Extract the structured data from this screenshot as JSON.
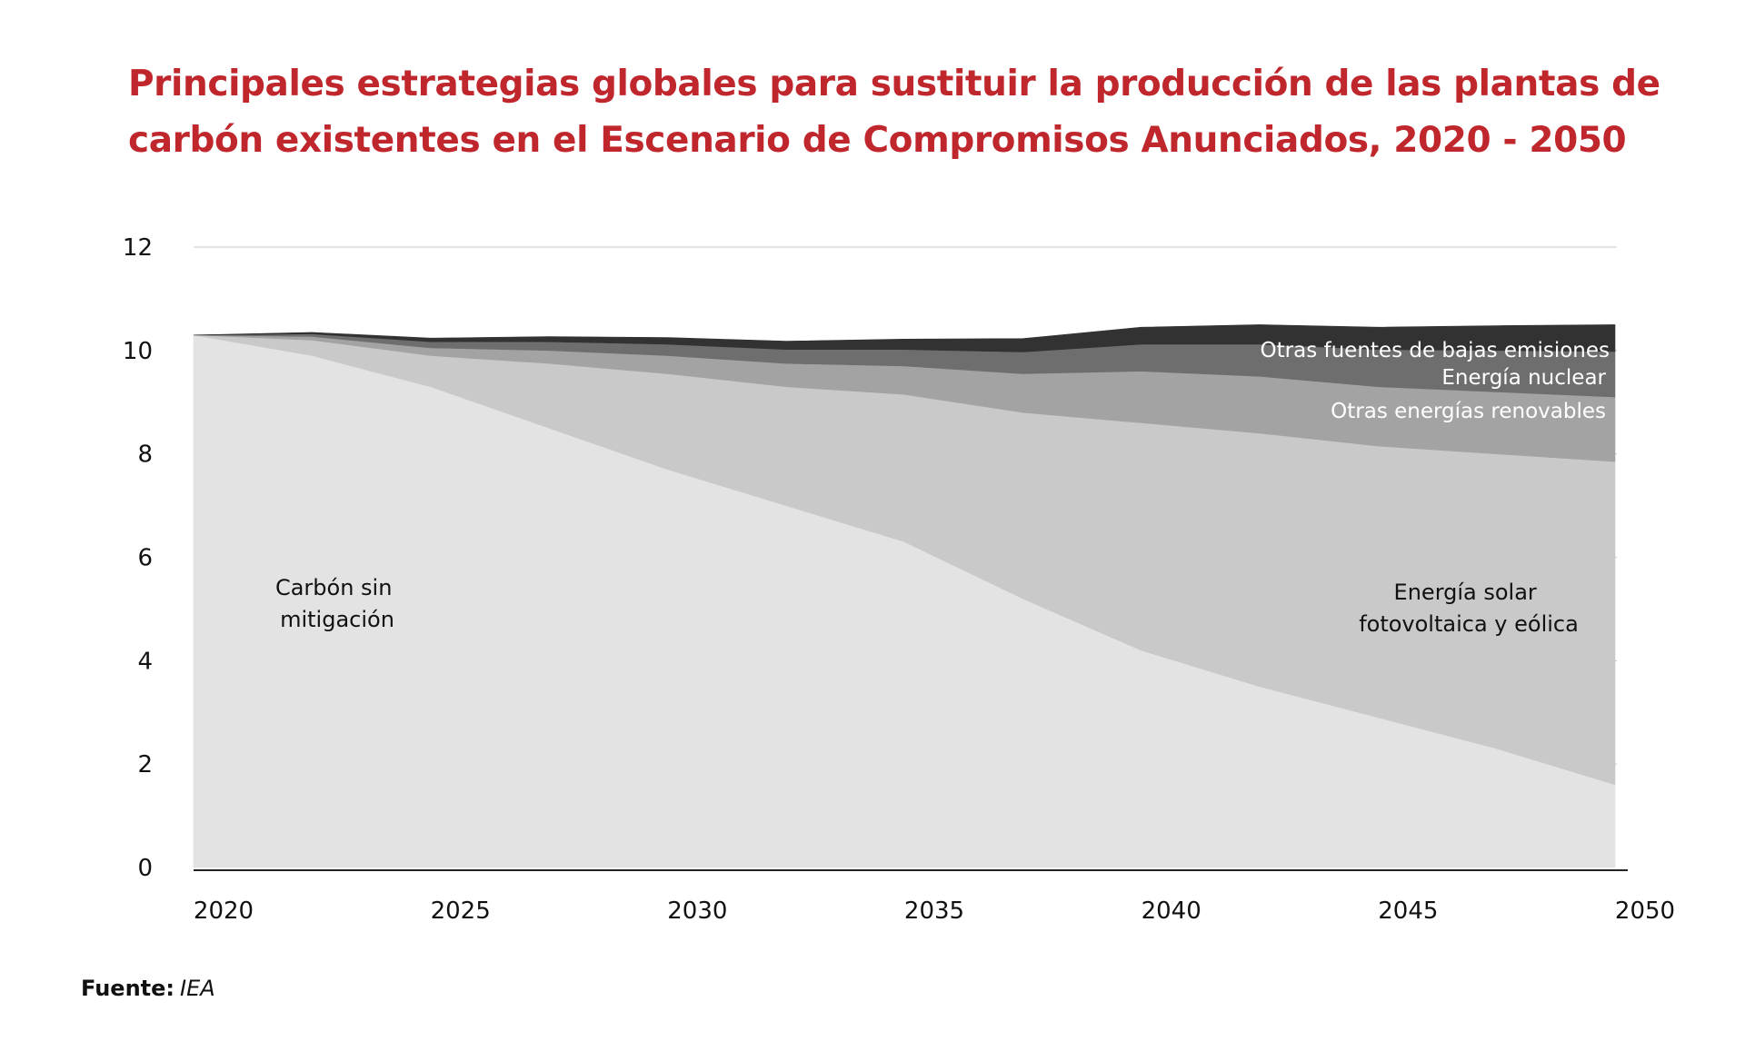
{
  "title": {
    "line1": "Principales estrategias globales para sustituir la producción de las plantas de",
    "line2": "carbón existentes en el Escenario de Compromisos Anunciados, 2020 - 2050"
  },
  "source": {
    "label": "Fuente:",
    "value": "IEA"
  },
  "colors": {
    "title": "#c0272d",
    "carbon": "#e3e3e3",
    "solar_wind": "#c9c9c9",
    "other_renewables": "#a3a3a3",
    "nuclear": "#6e6e6e",
    "other_low_emissions": "#323232"
  },
  "chart_data": {
    "type": "area",
    "stacked": true,
    "x": [
      2020,
      2022.5,
      2025,
      2027.5,
      2030,
      2032.5,
      2035,
      2037.5,
      2040,
      2042.5,
      2045,
      2047.5,
      2050
    ],
    "xticks": [
      "2020",
      "2025",
      "2030",
      "2035",
      "2040",
      "2045",
      "2050"
    ],
    "ylim": [
      0,
      12
    ],
    "yticks": [
      "0",
      "2",
      "4",
      "6",
      "8",
      "10",
      "12"
    ],
    "grid": true,
    "series": [
      {
        "name": "Carbón sin mitigación",
        "color": "#e3e3e3",
        "values": [
          10.3,
          9.9,
          9.3,
          8.5,
          7.7,
          7.0,
          6.3,
          5.2,
          4.2,
          3.5,
          2.9,
          2.3,
          1.6
        ]
      },
      {
        "name": "Energía solar fotovoltaica y eólica",
        "color": "#c9c9c9",
        "values": [
          0.0,
          0.3,
          0.6,
          1.25,
          1.85,
          2.3,
          2.85,
          3.6,
          4.4,
          4.9,
          5.25,
          5.7,
          6.25
        ]
      },
      {
        "name": "Otras energías renovables",
        "color": "#a3a3a3",
        "values": [
          0.0,
          0.07,
          0.15,
          0.25,
          0.35,
          0.45,
          0.55,
          0.75,
          1.0,
          1.1,
          1.15,
          1.2,
          1.25
        ]
      },
      {
        "name": "Energía nuclear",
        "color": "#6e6e6e",
        "values": [
          0.0,
          0.05,
          0.12,
          0.17,
          0.22,
          0.27,
          0.32,
          0.42,
          0.52,
          0.62,
          0.72,
          0.8,
          0.88
        ]
      },
      {
        "name": "Otras fuentes de bajas emisiones",
        "color": "#323232",
        "values": [
          0.0,
          0.03,
          0.07,
          0.1,
          0.13,
          0.16,
          0.2,
          0.26,
          0.33,
          0.38,
          0.43,
          0.48,
          0.52
        ]
      }
    ],
    "labels": {
      "carbon": [
        "Carbón sin",
        "mitigación"
      ],
      "solar_wind": [
        "Energía solar",
        "fotovoltaica y eólica"
      ],
      "other_renewables": "Otras energías renovables",
      "nuclear": "Energía nuclear",
      "other_low_emissions": "Otras fuentes de bajas emisiones"
    }
  }
}
